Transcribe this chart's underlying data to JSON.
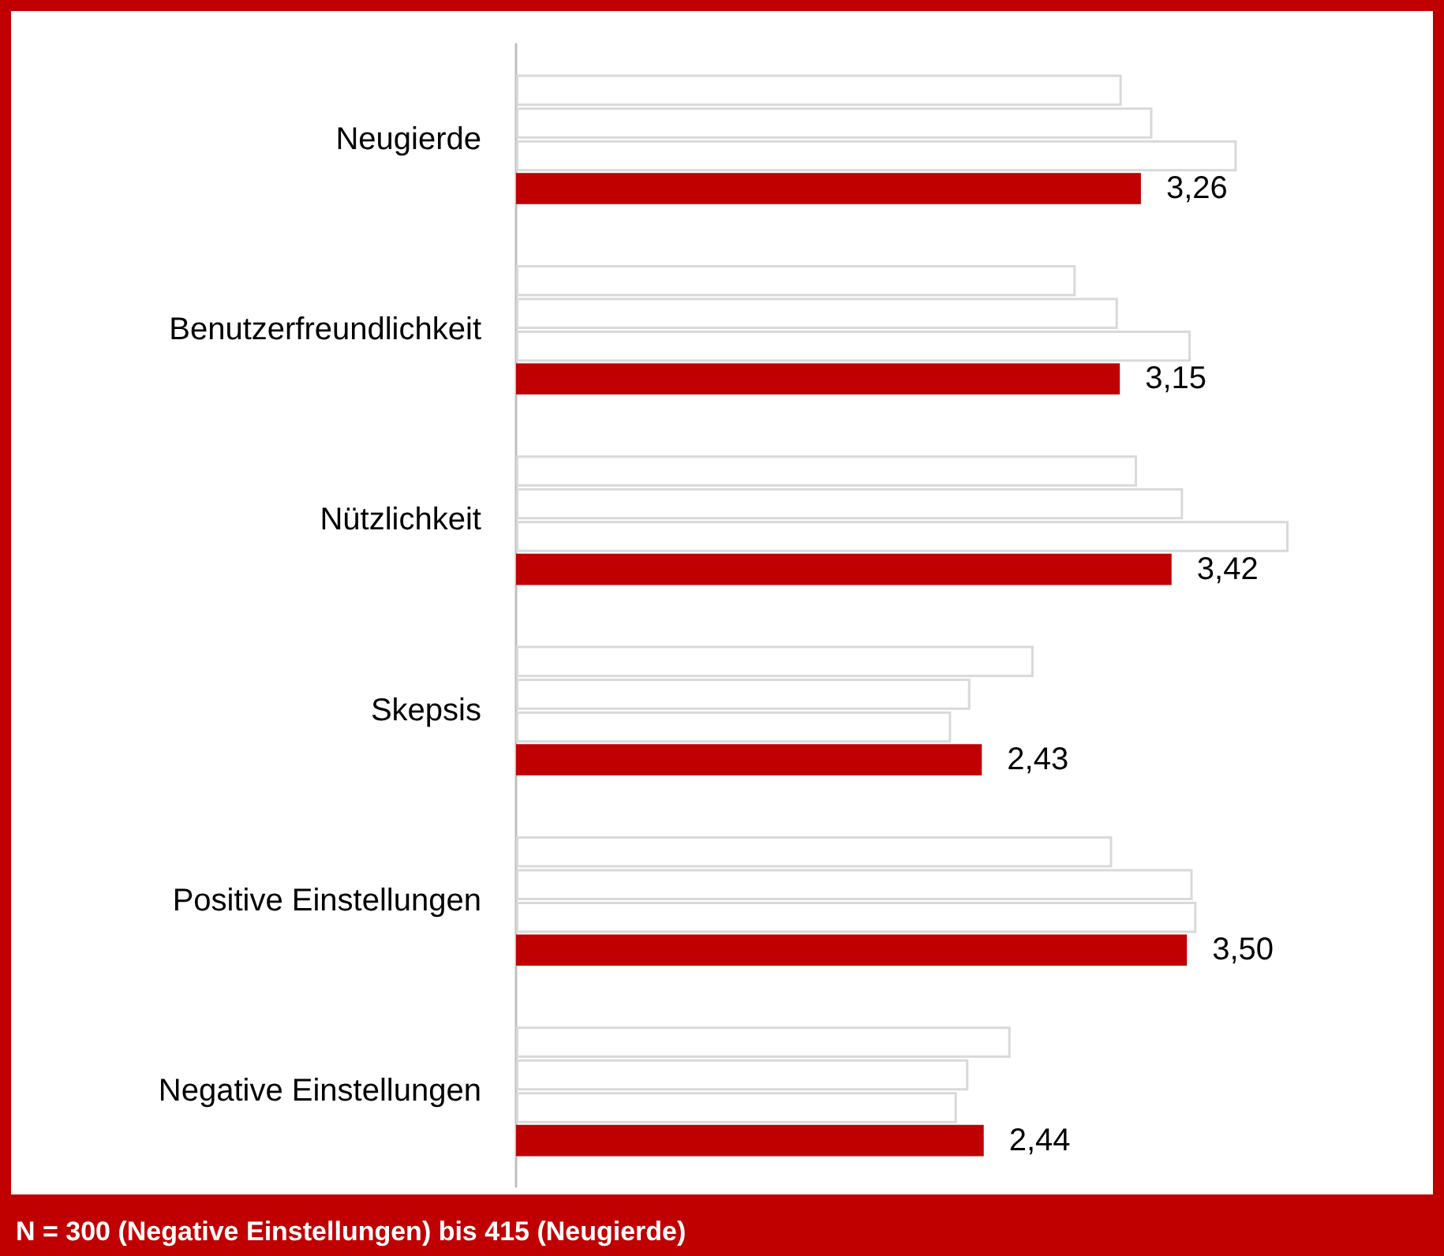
{
  "chart_data": {
    "type": "bar",
    "orientation": "horizontal",
    "categories": [
      "Neugierde",
      "Benutzerfreundlichkeit",
      "Nützlichkeit",
      "Skepsis",
      "Positive Einstellungen",
      "Negative Einstellungen"
    ],
    "series": [
      {
        "color": "#ffffff",
        "values": [
          3.16,
          2.92,
          3.24,
          2.7,
          3.11,
          2.58
        ]
      },
      {
        "color": "#ffffff",
        "values": [
          3.32,
          3.14,
          3.48,
          2.37,
          3.53,
          2.36
        ]
      },
      {
        "color": "#ffffff",
        "values": [
          3.76,
          3.52,
          4.03,
          2.27,
          3.55,
          2.3
        ]
      },
      {
        "color": "#c00000",
        "values": [
          3.26,
          3.15,
          3.42,
          2.43,
          3.5,
          2.44
        ],
        "value_labels": [
          "3,26",
          "3,15",
          "3,42",
          "2,43",
          "3,50",
          "2,44"
        ]
      }
    ],
    "xlim": [
      0,
      4.8
    ],
    "tick_labels": "y",
    "annotations": [
      "N = 300 (Negative Einstellungen) bis 415 (Neugierde)"
    ]
  }
}
